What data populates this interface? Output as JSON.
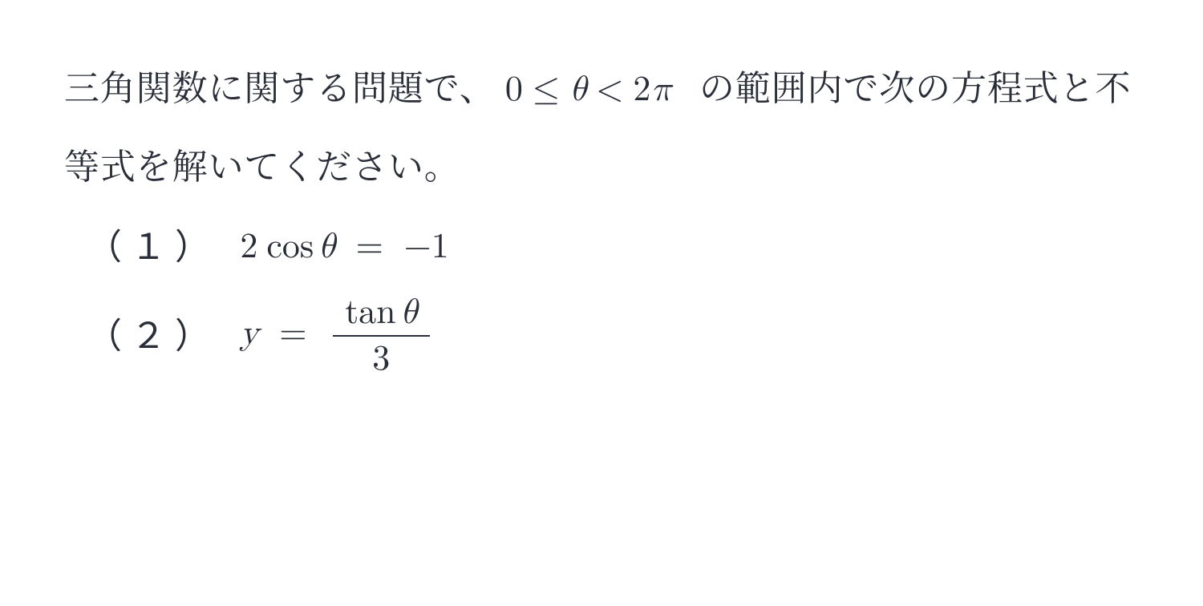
{
  "colors": {
    "text": "#2a2e38",
    "background": "#ffffff"
  },
  "intro": {
    "part1": "三角関数に関する問題で、",
    "range_math": "0 ≤ θ < 2π",
    "part2": "の範囲内で次の方程式と不等式を解いてください。"
  },
  "items": [
    {
      "label_open": "（",
      "label_num": "１",
      "label_close": "）",
      "expr": {
        "type": "equation",
        "lhs_coeff": "2",
        "lhs_fn": "cos",
        "lhs_var": "θ",
        "rel": "=",
        "rhs": "−1",
        "plain": "2 cos θ = −1"
      }
    },
    {
      "label_open": "（",
      "label_num": "２",
      "label_close": "）",
      "expr": {
        "type": "equation",
        "lhs_var": "y",
        "rel": "=",
        "rhs_frac_top_fn": "tan",
        "rhs_frac_top_var": "θ",
        "rhs_frac_bot": "3",
        "plain": "y = tan θ / 3"
      }
    }
  ]
}
